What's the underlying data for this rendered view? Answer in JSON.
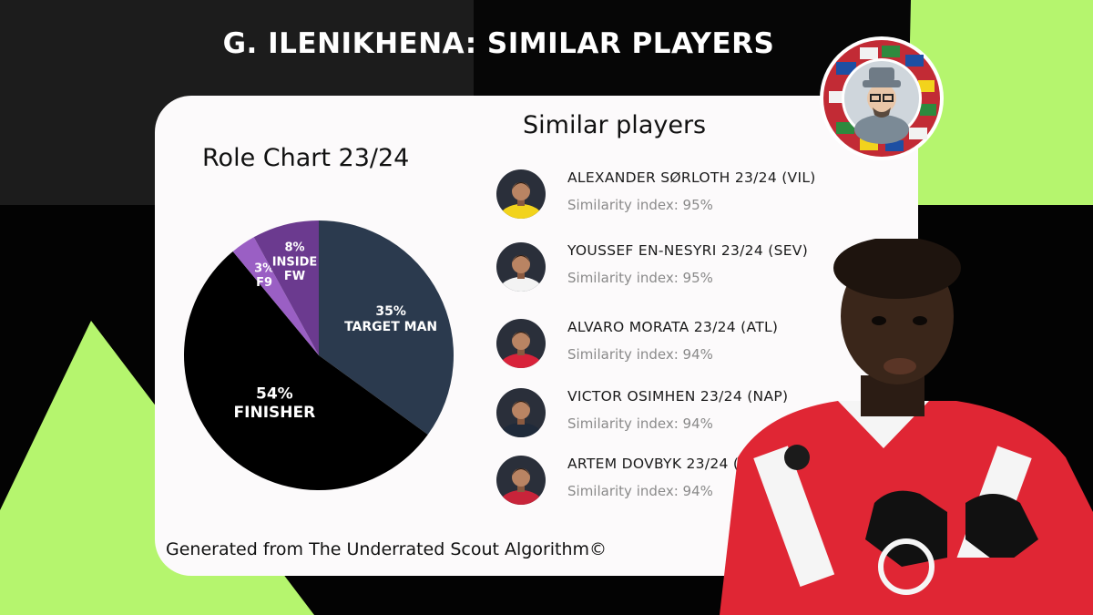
{
  "header": {
    "title": "G. ILENIKHENA: SIMILAR PLAYERS"
  },
  "role_chart": {
    "title": "Role Chart 23/24"
  },
  "similar_section": {
    "title": "Similar players"
  },
  "footer": {
    "note": "Generated from The Underrated Scout Algorithm©"
  },
  "chart_data": {
    "type": "pie",
    "title": "Role Chart 23/24",
    "slices": [
      {
        "pct": "35%",
        "name": "TARGET MAN",
        "value": 35,
        "color": "#2b3a4e"
      },
      {
        "pct": "54%",
        "name": "FINISHER",
        "value": 54,
        "color": "#000000"
      },
      {
        "pct": "3%",
        "name": "F9",
        "value": 3,
        "color": "#9a5fc4"
      },
      {
        "pct": "8%",
        "name": "INSIDE FW",
        "value": 8,
        "color": "#6b3a8f"
      }
    ]
  },
  "similar_players": [
    {
      "name": "ALEXANDER SØRLOTH 23/24 (VIL)",
      "index": "Similarity index: 95%",
      "kit": "#f2d31c"
    },
    {
      "name": "YOUSSEF EN-NESYRI 23/24 (SEV)",
      "index": "Similarity index: 95%",
      "kit": "#f3f3f3"
    },
    {
      "name": "ALVARO MORATA 23/24 (ATL)",
      "index": "Similarity index: 94%",
      "kit": "#d8223a"
    },
    {
      "name": "VICTOR OSIMHEN 23/24 (NAP)",
      "index": "Similarity index: 94%",
      "kit": "#1f2a3a"
    },
    {
      "name": "ARTEM DOVBYK 23/24 (GIR)",
      "index": "Similarity index: 94%",
      "kit": "#c8243a"
    }
  ],
  "colors": {
    "accent_green": "#b5f56e",
    "card_bg": "#fcfafb"
  }
}
